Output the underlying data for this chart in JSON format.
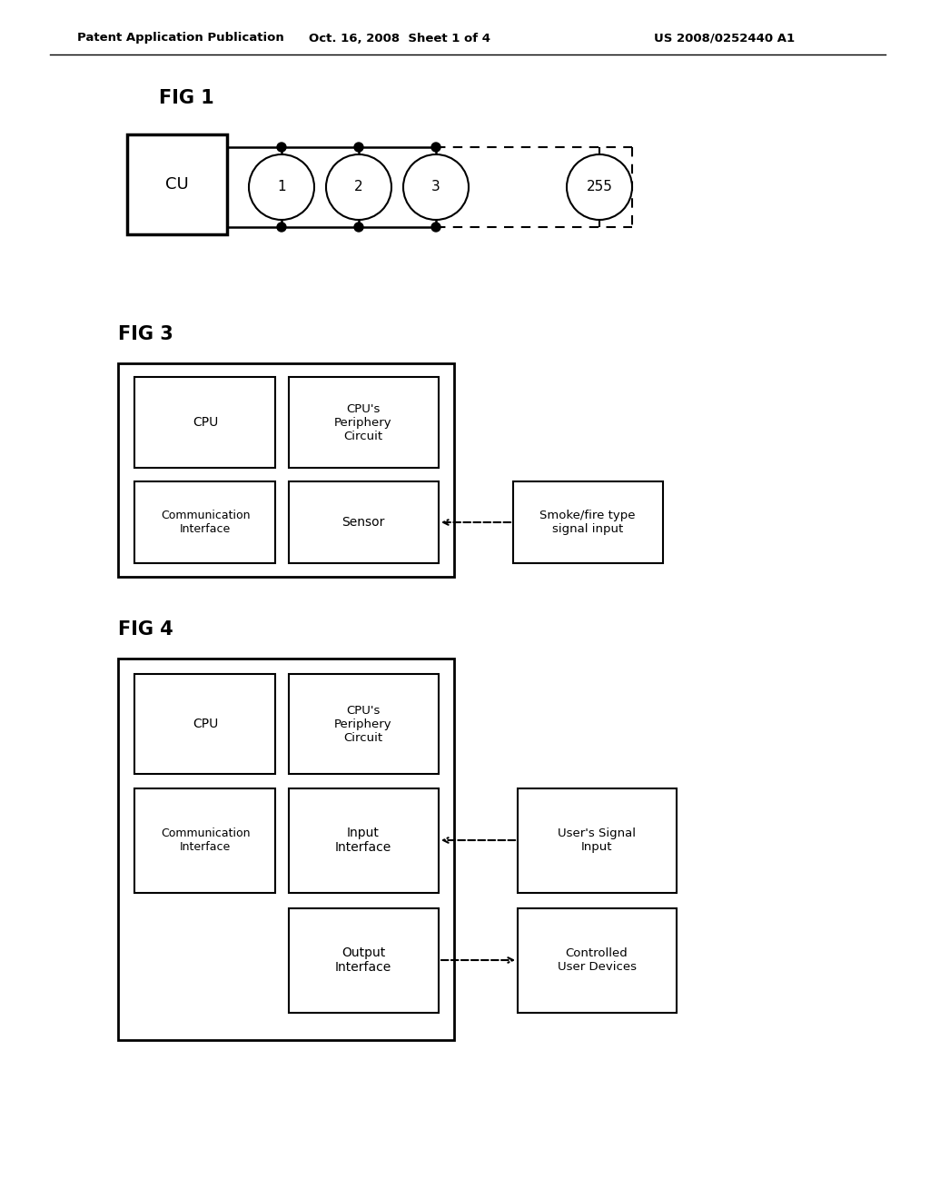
{
  "bg_color": "#ffffff",
  "text_color": "#000000",
  "header_left": "Patent Application Publication",
  "header_center": "Oct. 16, 2008  Sheet 1 of 4",
  "header_right": "US 2008/0252440 A1",
  "fig1_label": "FIG 1",
  "fig1_cu_label": "CU",
  "fig1_nodes": [
    "1",
    "2",
    "3",
    "255"
  ],
  "fig3_label": "FIG 3",
  "fig3_external": "Smoke/fire type\nsignal input",
  "fig4_label": "FIG 4",
  "fig4_external1": "User's Signal\nInput",
  "fig4_external2": "Controlled\nUser Devices"
}
